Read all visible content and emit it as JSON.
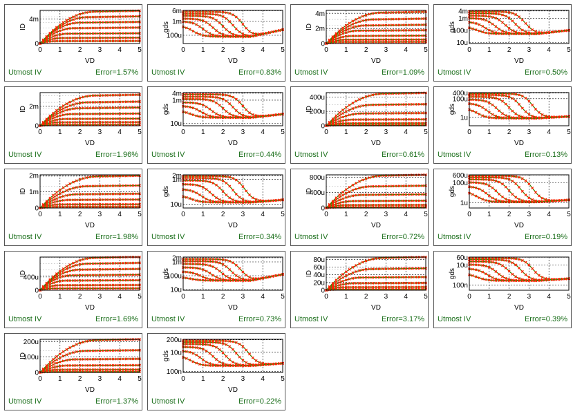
{
  "colors": {
    "sim": "#2e8b00",
    "meas": "#ff2200",
    "footer": "#1a6e1a"
  },
  "chart_data": [
    {
      "type": "line",
      "ylabel": "ID",
      "xlabel": "VD",
      "xlim": [
        0,
        5
      ],
      "xticks": [
        "0",
        "1",
        "2",
        "3",
        "4",
        "5"
      ],
      "yscale": "linear",
      "ylim": [
        0,
        5.4
      ],
      "yticks": [
        {
          "v": 0,
          "t": "0"
        },
        {
          "v": 4,
          "t": "4m"
        }
      ],
      "curves": {
        "kind": "id",
        "sat": [
          5.2,
          4.3,
          3.4,
          2.5,
          1.6,
          0.9,
          0.4
        ],
        "vsat": [
          2.8,
          2.4,
          2.0,
          1.7,
          1.4,
          1.1,
          0.8
        ]
      },
      "tool": "Utmost IV",
      "error": "Error=1.57%"
    },
    {
      "type": "line",
      "ylabel": "gds",
      "xlabel": "VD",
      "xlim": [
        0,
        5
      ],
      "xticks": [
        "0",
        "1",
        "2",
        "3",
        "4",
        "5"
      ],
      "yscale": "log",
      "ylim": [
        -4.6,
        -2.2
      ],
      "yticks": [
        {
          "v": -2.22,
          "t": "6m"
        },
        {
          "v": -3,
          "t": "1m"
        },
        {
          "v": -4,
          "t": "100u"
        }
      ],
      "curves": {
        "kind": "gds",
        "start": [
          -2.3,
          -2.45,
          -2.6,
          -2.8,
          -3.0,
          -3.3
        ],
        "drop": [
          3.0,
          2.5,
          2.0,
          1.5,
          1.0,
          0.5
        ],
        "floor": -4.1,
        "rise": 0.5
      },
      "tool": "Utmost IV",
      "error": "Error=0.83%"
    },
    {
      "type": "line",
      "ylabel": "ID",
      "xlabel": "VD",
      "xlim": [
        0,
        5
      ],
      "xticks": [
        "0",
        "1",
        "2",
        "3",
        "4",
        "5"
      ],
      "yscale": "linear",
      "ylim": [
        0,
        4.4
      ],
      "yticks": [
        {
          "v": 0,
          "t": "0"
        },
        {
          "v": 2,
          "t": "2m"
        },
        {
          "v": 4,
          "t": "4m"
        }
      ],
      "curves": {
        "kind": "id",
        "sat": [
          4.1,
          3.2,
          2.4,
          1.7,
          1.0,
          0.5,
          0.2
        ],
        "vsat": [
          2.8,
          2.4,
          2.0,
          1.6,
          1.3,
          1.0,
          0.7
        ]
      },
      "tool": "Utmost IV",
      "error": "Error=1.09%"
    },
    {
      "type": "line",
      "ylabel": "gds",
      "xlabel": "VD",
      "xlim": [
        0,
        5
      ],
      "xticks": [
        "0",
        "1",
        "2",
        "3",
        "4",
        "5"
      ],
      "yscale": "log",
      "ylim": [
        -5.1,
        -2.35
      ],
      "yticks": [
        {
          "v": -2.4,
          "t": "4m"
        },
        {
          "v": -3,
          "t": "1m"
        },
        {
          "v": -4,
          "t": "100u"
        },
        {
          "v": -5,
          "t": "10u"
        }
      ],
      "curves": {
        "kind": "gds",
        "start": [
          -2.45,
          -2.6,
          -2.8,
          -3.0,
          -3.3,
          -3.7
        ],
        "drop": [
          2.8,
          2.3,
          1.8,
          1.3,
          0.8,
          0.4
        ],
        "floor": -4.3,
        "rise": 0.3
      },
      "tool": "Utmost IV",
      "error": "Error=0.50%"
    },
    {
      "type": "line",
      "ylabel": "ID",
      "xlabel": "VD",
      "xlim": [
        0,
        5
      ],
      "xticks": [
        "0",
        "1",
        "2",
        "3",
        "4",
        "5"
      ],
      "yscale": "linear",
      "ylim": [
        0,
        3.4
      ],
      "yticks": [
        {
          "v": 0,
          "t": "0"
        },
        {
          "v": 2,
          "t": "2m"
        }
      ],
      "curves": {
        "kind": "id",
        "sat": [
          3.1,
          2.4,
          1.8,
          1.2,
          0.7,
          0.35,
          0.1
        ],
        "vsat": [
          2.8,
          2.4,
          2.0,
          1.6,
          1.3,
          1.0,
          0.7
        ]
      },
      "tool": "Utmost IV",
      "error": "Error=1.96%"
    },
    {
      "type": "line",
      "ylabel": "gds",
      "xlabel": "VD",
      "xlim": [
        0,
        5
      ],
      "xticks": [
        "0",
        "1",
        "2",
        "3",
        "4",
        "5"
      ],
      "yscale": "log",
      "ylim": [
        -5.2,
        -2.35
      ],
      "yticks": [
        {
          "v": -2.4,
          "t": "4m"
        },
        {
          "v": -3,
          "t": "1m"
        },
        {
          "v": -5,
          "t": "10u"
        }
      ],
      "curves": {
        "kind": "gds",
        "start": [
          -2.5,
          -2.7,
          -2.9,
          -3.2,
          -3.5,
          -3.9
        ],
        "drop": [
          3.0,
          2.5,
          2.0,
          1.4,
          0.9,
          0.4
        ],
        "floor": -4.5,
        "rise": 0.3
      },
      "tool": "Utmost IV",
      "error": "Error=0.44%"
    },
    {
      "type": "line",
      "ylabel": "ID",
      "xlabel": "VD",
      "xlim": [
        0,
        5
      ],
      "xticks": [
        "0",
        "1",
        "2",
        "3",
        "4",
        "5"
      ],
      "yscale": "linear",
      "ylim": [
        0,
        460
      ],
      "yticks": [
        {
          "v": 0,
          "t": "0"
        },
        {
          "v": 200,
          "t": "200u"
        },
        {
          "v": 400,
          "t": "400u"
        }
      ],
      "curves": {
        "kind": "id",
        "sat": [
          445,
          290,
          170,
          85,
          35,
          10
        ],
        "vsat": [
          2.9,
          2.3,
          1.8,
          1.4,
          1.0,
          0.7
        ]
      },
      "tool": "Utmost IV",
      "error": "Error=0.61%"
    },
    {
      "type": "line",
      "ylabel": "gds",
      "xlabel": "VD",
      "xlim": [
        0,
        5
      ],
      "xticks": [
        "0",
        "1",
        "2",
        "3",
        "4",
        "5"
      ],
      "yscale": "log",
      "ylim": [
        -6.9,
        -3.35
      ],
      "yticks": [
        {
          "v": -3.4,
          "t": "400u"
        },
        {
          "v": -4,
          "t": "100u"
        },
        {
          "v": -6,
          "t": "1u"
        }
      ],
      "curves": {
        "kind": "gds",
        "start": [
          -3.45,
          -3.6,
          -3.8,
          -4.1,
          -4.5,
          -5.0
        ],
        "drop": [
          3.2,
          2.6,
          2.0,
          1.4,
          0.9,
          0.4
        ],
        "floor": -6.1,
        "rise": 0.2
      },
      "tool": "Utmost IV",
      "error": "Error=0.13%"
    },
    {
      "type": "line",
      "ylabel": "ID",
      "xlabel": "VD",
      "xlim": [
        0,
        5
      ],
      "xticks": [
        "0",
        "1",
        "2",
        "3",
        "4",
        "5"
      ],
      "yscale": "linear",
      "ylim": [
        0,
        2.05
      ],
      "yticks": [
        {
          "v": 0,
          "t": "0"
        },
        {
          "v": 1,
          "t": "1m"
        },
        {
          "v": 2,
          "t": "2m"
        }
      ],
      "curves": {
        "kind": "id",
        "sat": [
          1.95,
          1.35,
          0.85,
          0.5,
          0.22,
          0.07
        ],
        "vsat": [
          2.9,
          2.4,
          1.9,
          1.5,
          1.1,
          0.8
        ]
      },
      "tool": "Utmost IV",
      "error": "Error=1.98%"
    },
    {
      "type": "line",
      "ylabel": "gds",
      "xlabel": "VD",
      "xlim": [
        0,
        5
      ],
      "xticks": [
        "0",
        "1",
        "2",
        "3",
        "4",
        "5"
      ],
      "yscale": "log",
      "ylim": [
        -5.3,
        -2.65
      ],
      "yticks": [
        {
          "v": -2.7,
          "t": "2m"
        },
        {
          "v": -3,
          "t": "1m"
        },
        {
          "v": -5,
          "t": "10u"
        }
      ],
      "curves": {
        "kind": "gds",
        "start": [
          -2.75,
          -2.9,
          -3.1,
          -3.4,
          -3.8,
          -4.3
        ],
        "drop": [
          3.1,
          2.5,
          2.0,
          1.4,
          0.9,
          0.4
        ],
        "floor": -4.85,
        "rise": 0.2
      },
      "tool": "Utmost IV",
      "error": "Error=0.34%"
    },
    {
      "type": "line",
      "ylabel": "ID",
      "xlabel": "VD",
      "xlim": [
        0,
        5
      ],
      "xticks": [
        "0",
        "1",
        "2",
        "3",
        "4",
        "5"
      ],
      "yscale": "linear",
      "ylim": [
        0,
        860
      ],
      "yticks": [
        {
          "v": 0,
          "t": "0"
        },
        {
          "v": 400,
          "t": "400u"
        },
        {
          "v": 800,
          "t": "800u"
        }
      ],
      "curves": {
        "kind": "id",
        "sat": [
          840,
          560,
          340,
          180,
          75,
          20
        ],
        "vsat": [
          2.9,
          2.3,
          1.8,
          1.4,
          1.0,
          0.7
        ]
      },
      "tool": "Utmost IV",
      "error": "Error=0.72%"
    },
    {
      "type": "line",
      "ylabel": "gds",
      "xlabel": "VD",
      "xlim": [
        0,
        5
      ],
      "xticks": [
        "0",
        "1",
        "2",
        "3",
        "4",
        "5"
      ],
      "yscale": "log",
      "ylim": [
        -6.5,
        -3.2
      ],
      "yticks": [
        {
          "v": -3.22,
          "t": "600u"
        },
        {
          "v": -4,
          "t": "100u"
        },
        {
          "v": -6,
          "t": "1u"
        }
      ],
      "curves": {
        "kind": "gds",
        "start": [
          -3.3,
          -3.45,
          -3.65,
          -3.95,
          -4.35,
          -4.85
        ],
        "drop": [
          3.2,
          2.6,
          2.0,
          1.4,
          0.9,
          0.4
        ],
        "floor": -5.9,
        "rise": 0.2
      },
      "tool": "Utmost IV",
      "error": "Error=0.19%"
    },
    {
      "type": "line",
      "ylabel": "ID",
      "xlabel": "VD",
      "xlim": [
        0,
        5
      ],
      "xticks": [
        "0",
        "1",
        "2",
        "3",
        "4",
        "5"
      ],
      "yscale": "linear",
      "ylim": [
        0,
        1000
      ],
      "yticks": [
        {
          "v": 0,
          "t": "0"
        },
        {
          "v": 400,
          "t": "400u"
        }
      ],
      "curves": {
        "kind": "id",
        "sat": [
          980,
          800,
          620,
          450,
          290,
          150,
          55
        ],
        "vsat": [
          2.8,
          2.4,
          2.0,
          1.6,
          1.3,
          1.0,
          0.7
        ]
      },
      "tool": "Utmost IV",
      "error": "Error=1.69%"
    },
    {
      "type": "line",
      "ylabel": "gds",
      "xlabel": "VD",
      "xlim": [
        0,
        5
      ],
      "xticks": [
        "0",
        "1",
        "2",
        "3",
        "4",
        "5"
      ],
      "yscale": "log",
      "ylim": [
        -5.05,
        -2.65
      ],
      "yticks": [
        {
          "v": -2.7,
          "t": "2m"
        },
        {
          "v": -3,
          "t": "1m"
        },
        {
          "v": -4,
          "t": "100u"
        },
        {
          "v": -5,
          "t": "10u"
        }
      ],
      "curves": {
        "kind": "gds",
        "start": [
          -2.8,
          -2.95,
          -3.15,
          -3.4,
          -3.7,
          -4.1
        ],
        "drop": [
          2.9,
          2.4,
          1.9,
          1.4,
          0.9,
          0.4
        ],
        "floor": -4.35,
        "rise": 0.45
      },
      "tool": "Utmost IV",
      "error": "Error=0.73%"
    },
    {
      "type": "line",
      "ylabel": "ID",
      "xlabel": "VD",
      "xlim": [
        0,
        5
      ],
      "xticks": [
        "0",
        "1",
        "2",
        "3",
        "4",
        "5"
      ],
      "yscale": "linear",
      "ylim": [
        0,
        86
      ],
      "yticks": [
        {
          "v": 0,
          "t": "0"
        },
        {
          "v": 20,
          "t": "20u"
        },
        {
          "v": 40,
          "t": "40u"
        },
        {
          "v": 60,
          "t": "60u"
        },
        {
          "v": 80,
          "t": "80u"
        }
      ],
      "curves": {
        "kind": "id",
        "sat": [
          84,
          55,
          33,
          18,
          8,
          2.5
        ],
        "vsat": [
          2.9,
          2.3,
          1.8,
          1.4,
          1.0,
          0.7
        ]
      },
      "tool": "Utmost IV",
      "error": "Error=3.17%"
    },
    {
      "type": "line",
      "ylabel": "gds",
      "xlabel": "VD",
      "xlim": [
        0,
        5
      ],
      "xticks": [
        "0",
        "1",
        "2",
        "3",
        "4",
        "5"
      ],
      "yscale": "log",
      "ylim": [
        -7.5,
        -4.2
      ],
      "yticks": [
        {
          "v": -4.22,
          "t": "60u"
        },
        {
          "v": -5,
          "t": "10u"
        },
        {
          "v": -7,
          "t": "100n"
        }
      ],
      "curves": {
        "kind": "gds",
        "start": [
          -4.3,
          -4.45,
          -4.65,
          -4.95,
          -5.35,
          -5.85
        ],
        "drop": [
          3.2,
          2.6,
          2.0,
          1.4,
          0.9,
          0.4
        ],
        "floor": -6.55,
        "rise": 0.2
      },
      "tool": "Utmost IV",
      "error": "Error=0.39%"
    },
    {
      "type": "line",
      "ylabel": "ID",
      "xlabel": "VD",
      "xlim": [
        0,
        5
      ],
      "xticks": [
        "0",
        "1",
        "2",
        "3",
        "4",
        "5"
      ],
      "yscale": "linear",
      "ylim": [
        0,
        215
      ],
      "yticks": [
        {
          "v": 0,
          "t": "0"
        },
        {
          "v": 100,
          "t": "100u"
        },
        {
          "v": 200,
          "t": "200u"
        }
      ],
      "curves": {
        "kind": "id",
        "sat": [
          210,
          140,
          85,
          45,
          18,
          5
        ],
        "vsat": [
          2.9,
          2.3,
          1.8,
          1.4,
          1.0,
          0.7
        ]
      },
      "tool": "Utmost IV",
      "error": "Error=1.37%"
    },
    {
      "type": "line",
      "ylabel": "gds",
      "xlabel": "VD",
      "xlim": [
        0,
        5
      ],
      "xticks": [
        "0",
        "1",
        "2",
        "3",
        "4",
        "5"
      ],
      "yscale": "log",
      "ylim": [
        -7.1,
        -3.65
      ],
      "yticks": [
        {
          "v": -3.7,
          "t": "200u"
        },
        {
          "v": -5,
          "t": "10u"
        },
        {
          "v": -7,
          "t": "100n"
        }
      ],
      "curves": {
        "kind": "gds",
        "start": [
          -3.8,
          -3.95,
          -4.15,
          -4.45,
          -4.85,
          -5.35
        ],
        "drop": [
          3.3,
          2.7,
          2.1,
          1.5,
          0.9,
          0.4
        ],
        "floor": -6.4,
        "rise": 0.25
      },
      "tool": "Utmost IV",
      "error": "Error=0.22%"
    }
  ]
}
